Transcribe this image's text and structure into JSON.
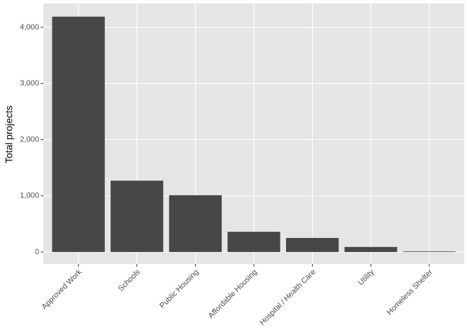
{
  "chart_data": {
    "type": "bar",
    "y_label": "Total projects",
    "categories": [
      "Approved Work",
      "Schools",
      "Public Housing",
      "Affordable Housing",
      "Hospital / Health Care",
      "Utility",
      "Homeless Shelter"
    ],
    "values": [
      4190,
      1270,
      1010,
      360,
      250,
      90,
      10
    ],
    "color": "#474747",
    "ylim": [
      -212,
      4424
    ],
    "yticks": [
      0,
      {
        "value": 1000,
        "label": "1,000"
      },
      {
        "value": 2000,
        "label": "2,000"
      },
      {
        "value": 3000,
        "label": "3,000"
      },
      {
        "value": 4000,
        "label": "4,000"
      }
    ],
    "grid": true
  }
}
